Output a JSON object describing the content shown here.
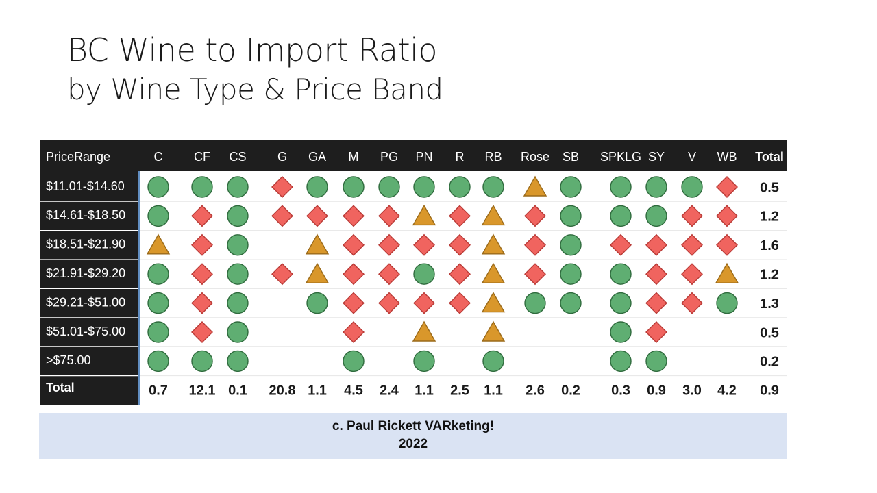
{
  "title": {
    "line1": "BC Wine to Import Ratio",
    "line2": "by Wine Type & Price Band"
  },
  "chart_data": {
    "type": "table",
    "corner_label": "PriceRange",
    "total_label": "Total",
    "columns": [
      "C",
      "CF",
      "CS",
      "G",
      "GA",
      "M",
      "PG",
      "PN",
      "R",
      "RB",
      "Rose",
      "SB",
      "SPKLG",
      "SY",
      "V",
      "WB"
    ],
    "rows": [
      {
        "label": "$11.01-$14.60",
        "marks": [
          "circle",
          "circle",
          "circle",
          "diamond",
          "circle",
          "circle",
          "circle",
          "circle",
          "circle",
          "circle",
          "triangle",
          "circle",
          "circle",
          "circle",
          "circle",
          "diamond"
        ],
        "total": "0.5"
      },
      {
        "label": "$14.61-$18.50",
        "marks": [
          "circle",
          "diamond",
          "circle",
          "diamond",
          "diamond",
          "diamond",
          "diamond",
          "triangle",
          "diamond",
          "triangle",
          "diamond",
          "circle",
          "circle",
          "circle",
          "diamond",
          "diamond"
        ],
        "total": "1.2"
      },
      {
        "label": "$18.51-$21.90",
        "marks": [
          "triangle",
          "diamond",
          "circle",
          null,
          "triangle",
          "diamond",
          "diamond",
          "diamond",
          "diamond",
          "triangle",
          "diamond",
          "circle",
          "diamond",
          "diamond",
          "diamond",
          "diamond"
        ],
        "total": "1.6"
      },
      {
        "label": "$21.91-$29.20",
        "marks": [
          "circle",
          "diamond",
          "circle",
          "diamond",
          "triangle",
          "diamond",
          "diamond",
          "circle",
          "diamond",
          "triangle",
          "diamond",
          "circle",
          "circle",
          "diamond",
          "diamond",
          "triangle"
        ],
        "total": "1.2"
      },
      {
        "label": "$29.21-$51.00",
        "marks": [
          "circle",
          "diamond",
          "circle",
          null,
          "circle",
          "diamond",
          "diamond",
          "diamond",
          "diamond",
          "triangle",
          "circle",
          "circle",
          "circle",
          "diamond",
          "diamond",
          "circle"
        ],
        "total": "1.3"
      },
      {
        "label": "$51.01-$75.00",
        "marks": [
          "circle",
          "diamond",
          "circle",
          null,
          null,
          "diamond",
          null,
          "triangle",
          null,
          "triangle",
          null,
          null,
          "circle",
          "diamond",
          null,
          null
        ],
        "total": "0.5"
      },
      {
        "label": ">$75.00",
        "marks": [
          "circle",
          "circle",
          "circle",
          null,
          null,
          "circle",
          null,
          "circle",
          null,
          "circle",
          null,
          null,
          "circle",
          "circle",
          null,
          null
        ],
        "total": "0.2"
      }
    ],
    "column_totals": [
      "0.7",
      "12.1",
      "0.1",
      "20.8",
      "1.1",
      "4.5",
      "2.4",
      "1.1",
      "2.5",
      "1.1",
      "2.6",
      "0.2",
      "0.3",
      "0.9",
      "3.0",
      "4.2"
    ],
    "grand_total": "0.9",
    "mark_colors": {
      "circle": "#5fae72",
      "diamond": "#f0645f",
      "triangle": "#d9972b"
    },
    "header_bg": "#1e1e1e",
    "header_text": "#ffffff"
  },
  "footer": {
    "line1": "c. Paul Rickett VARketing!",
    "line2": "2022"
  }
}
